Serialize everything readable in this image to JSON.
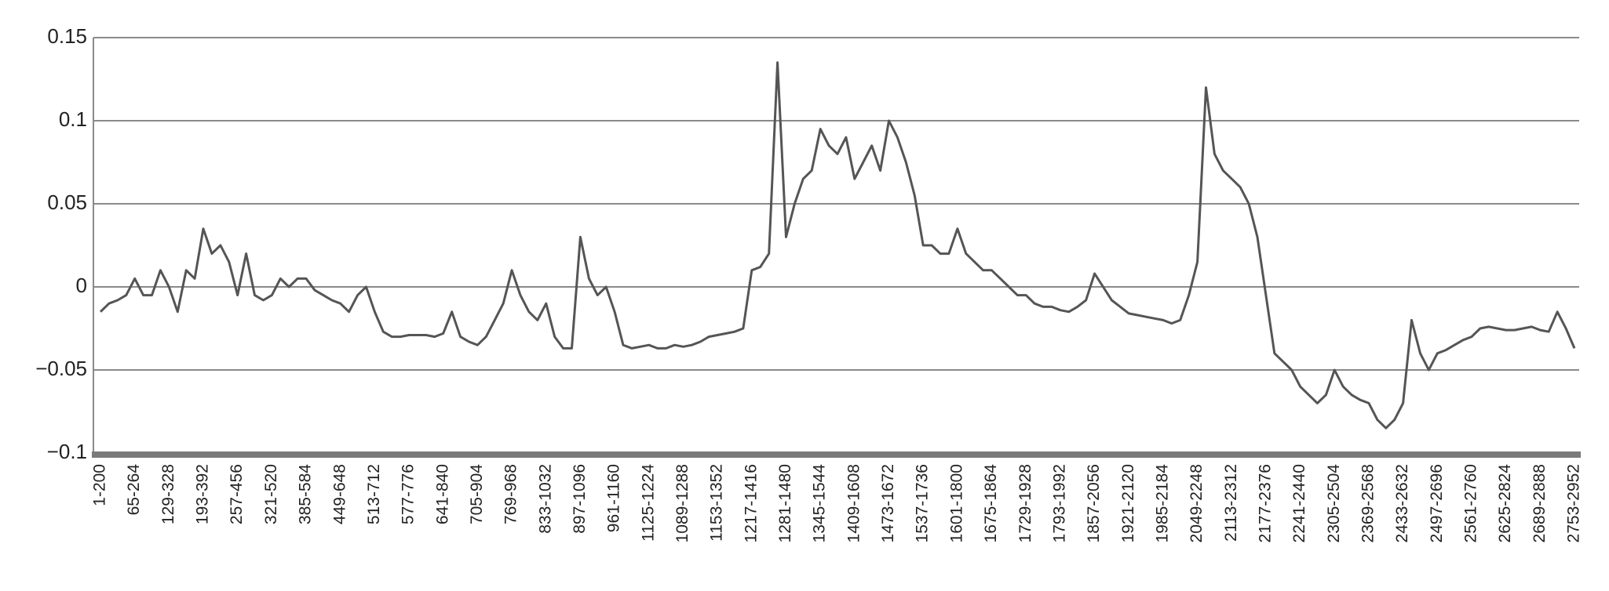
{
  "chart_data": {
    "type": "line",
    "color": "#555555",
    "grid": true,
    "ylim": [
      -0.1,
      0.15
    ],
    "yticks": [
      0.15,
      0.1,
      0.05,
      0,
      {
        "value": -0.05,
        "label": "−0.05"
      },
      {
        "value": -0.1,
        "label": "−0.1"
      }
    ],
    "categories": [
      "1-200",
      null,
      null,
      null,
      "65-264",
      null,
      null,
      null,
      "129-328",
      null,
      null,
      null,
      "193-392",
      null,
      null,
      null,
      "257-456",
      null,
      null,
      null,
      "321-520",
      null,
      null,
      null,
      "385-584",
      null,
      null,
      null,
      "449-648",
      null,
      null,
      null,
      "513-712",
      null,
      null,
      null,
      "577-776",
      null,
      null,
      null,
      "641-840",
      null,
      null,
      null,
      "705-904",
      null,
      null,
      null,
      "769-968",
      null,
      null,
      null,
      "833-1032",
      null,
      null,
      null,
      "897-1096",
      null,
      null,
      null,
      "961-1160",
      null,
      null,
      null,
      "1125-1224",
      null,
      null,
      null,
      "1089-1288",
      null,
      null,
      null,
      "1153-1352",
      null,
      null,
      null,
      "1217-1416",
      null,
      null,
      null,
      "1281-1480",
      null,
      null,
      null,
      "1345-1544",
      null,
      null,
      null,
      "1409-1608",
      null,
      null,
      null,
      "1473-1672",
      null,
      null,
      null,
      "1537-1736",
      null,
      null,
      null,
      "1601-1800",
      null,
      null,
      null,
      "1675-1864",
      null,
      null,
      null,
      "1729-1928",
      null,
      null,
      null,
      "1793-1992",
      null,
      null,
      null,
      "1857-2056",
      null,
      null,
      null,
      "1921-2120",
      null,
      null,
      null,
      "1985-2184",
      null,
      null,
      null,
      "2049-2248",
      null,
      null,
      null,
      "2113-2312",
      null,
      null,
      null,
      "2177-2376",
      null,
      null,
      null,
      "2241-2440",
      null,
      null,
      null,
      "2305-2504",
      null,
      null,
      null,
      "2369-2568",
      null,
      null,
      null,
      "2433-2632",
      null,
      null,
      null,
      "2497-2696",
      null,
      null,
      null,
      "2561-2760",
      null,
      null,
      null,
      "2625-2824",
      null,
      null,
      null,
      "2689-2888",
      null,
      null,
      null,
      "2753-2952"
    ],
    "values": [
      -0.015,
      -0.01,
      -0.008,
      -0.005,
      0.005,
      -0.005,
      -0.005,
      0.01,
      0.0,
      -0.015,
      0.01,
      0.005,
      0.035,
      0.02,
      0.025,
      0.015,
      -0.005,
      0.02,
      -0.005,
      -0.008,
      -0.005,
      0.005,
      0.0,
      0.005,
      0.005,
      -0.002,
      -0.005,
      -0.008,
      -0.01,
      -0.015,
      -0.005,
      0.0,
      -0.015,
      -0.027,
      -0.03,
      -0.03,
      -0.029,
      -0.029,
      -0.029,
      -0.03,
      -0.028,
      -0.015,
      -0.03,
      -0.033,
      -0.035,
      -0.03,
      -0.02,
      -0.01,
      0.01,
      -0.005,
      -0.015,
      -0.02,
      -0.01,
      -0.03,
      -0.037,
      -0.037,
      0.03,
      0.005,
      -0.005,
      0.0,
      -0.015,
      -0.035,
      -0.037,
      -0.036,
      -0.035,
      -0.037,
      -0.037,
      -0.035,
      -0.036,
      -0.035,
      -0.033,
      -0.03,
      -0.029,
      -0.028,
      -0.027,
      -0.025,
      0.01,
      0.012,
      0.02,
      0.135,
      0.03,
      0.05,
      0.065,
      0.07,
      0.095,
      0.085,
      0.08,
      0.09,
      0.065,
      0.075,
      0.085,
      0.07,
      0.1,
      0.09,
      0.075,
      0.055,
      0.025,
      0.025,
      0.02,
      0.02,
      0.035,
      0.02,
      0.015,
      0.01,
      0.01,
      0.005,
      0.0,
      -0.005,
      -0.005,
      -0.01,
      -0.012,
      -0.012,
      -0.014,
      -0.015,
      -0.012,
      -0.008,
      0.008,
      0.0,
      -0.008,
      -0.012,
      -0.016,
      -0.017,
      -0.018,
      -0.019,
      -0.02,
      -0.022,
      -0.02,
      -0.005,
      0.015,
      0.12,
      0.08,
      0.07,
      0.065,
      0.06,
      0.05,
      0.03,
      -0.005,
      -0.04,
      -0.045,
      -0.05,
      -0.06,
      -0.065,
      -0.07,
      -0.065,
      -0.05,
      -0.06,
      -0.065,
      -0.068,
      -0.07,
      -0.08,
      -0.085,
      -0.08,
      -0.07,
      -0.02,
      -0.04,
      -0.05,
      -0.04,
      -0.038,
      -0.035,
      -0.032,
      -0.03,
      -0.025,
      -0.024,
      -0.025,
      -0.026,
      -0.026,
      -0.025,
      -0.024,
      -0.026,
      -0.027,
      -0.015,
      -0.025,
      -0.037
    ]
  }
}
